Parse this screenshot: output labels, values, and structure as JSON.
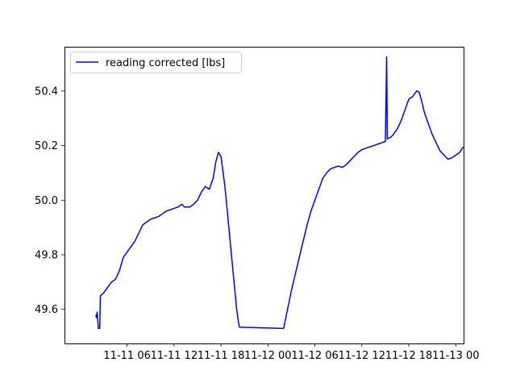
{
  "chart_data": {
    "type": "line",
    "title": "",
    "xlabel": "",
    "ylabel": "",
    "x_ticks": [
      "11-11 06",
      "11-11 12",
      "11-11 18",
      "11-12 00",
      "11-12 06",
      "11-12 12",
      "11-12 18",
      "11-13 00"
    ],
    "y_ticks": [
      "49.6",
      "49.8",
      "50.0",
      "50.2",
      "50.4"
    ],
    "x_range": [
      "2023-11-10 22:00",
      "2023-11-13 01:00"
    ],
    "ylim": [
      49.475,
      50.562
    ],
    "grid": false,
    "legend_position": "upper left",
    "series": [
      {
        "name": "reading corrected [lbs]",
        "color": "#0000ff",
        "points": [
          [
            "2023-11-11 02:00",
            49.58
          ],
          [
            "2023-11-11 02:05",
            49.57
          ],
          [
            "2023-11-11 02:10",
            49.59
          ],
          [
            "2023-11-11 02:15",
            49.56
          ],
          [
            "2023-11-11 02:20",
            49.53
          ],
          [
            "2023-11-11 02:30",
            49.53
          ],
          [
            "2023-11-11 02:35",
            49.65
          ],
          [
            "2023-11-11 03:00",
            49.66
          ],
          [
            "2023-11-11 03:30",
            49.68
          ],
          [
            "2023-11-11 04:00",
            49.7
          ],
          [
            "2023-11-11 04:30",
            49.71
          ],
          [
            "2023-11-11 05:00",
            49.74
          ],
          [
            "2023-11-11 05:30",
            49.79
          ],
          [
            "2023-11-11 06:00",
            49.81
          ],
          [
            "2023-11-11 06:30",
            49.83
          ],
          [
            "2023-11-11 07:00",
            49.85
          ],
          [
            "2023-11-11 07:30",
            49.88
          ],
          [
            "2023-11-11 08:00",
            49.91
          ],
          [
            "2023-11-11 08:30",
            49.92
          ],
          [
            "2023-11-11 09:00",
            49.93
          ],
          [
            "2023-11-11 09:30",
            49.935
          ],
          [
            "2023-11-11 10:00",
            49.94
          ],
          [
            "2023-11-11 10:30",
            49.95
          ],
          [
            "2023-11-11 11:00",
            49.96
          ],
          [
            "2023-11-11 11:30",
            49.965
          ],
          [
            "2023-11-11 12:00",
            49.97
          ],
          [
            "2023-11-11 12:30",
            49.975
          ],
          [
            "2023-11-11 13:00",
            49.985
          ],
          [
            "2023-11-11 13:20",
            49.975
          ],
          [
            "2023-11-11 14:00",
            49.975
          ],
          [
            "2023-11-11 14:30",
            49.985
          ],
          [
            "2023-11-11 15:00",
            50.0
          ],
          [
            "2023-11-11 15:30",
            50.03
          ],
          [
            "2023-11-11 16:00",
            50.05
          ],
          [
            "2023-11-11 16:30",
            50.04
          ],
          [
            "2023-11-11 17:00",
            50.08
          ],
          [
            "2023-11-11 17:20",
            50.14
          ],
          [
            "2023-11-11 17:40",
            50.175
          ],
          [
            "2023-11-11 18:00",
            50.16
          ],
          [
            "2023-11-11 18:30",
            50.05
          ],
          [
            "2023-11-11 19:00",
            49.9
          ],
          [
            "2023-11-11 19:30",
            49.75
          ],
          [
            "2023-11-11 20:00",
            49.6
          ],
          [
            "2023-11-11 20:20",
            49.535
          ],
          [
            "2023-11-12 02:00",
            49.53
          ],
          [
            "2023-11-12 02:30",
            49.6
          ],
          [
            "2023-11-12 03:00",
            49.67
          ],
          [
            "2023-11-12 03:30",
            49.73
          ],
          [
            "2023-11-12 04:00",
            49.79
          ],
          [
            "2023-11-12 04:30",
            49.85
          ],
          [
            "2023-11-12 05:00",
            49.91
          ],
          [
            "2023-11-12 05:30",
            49.96
          ],
          [
            "2023-11-12 06:00",
            50.0
          ],
          [
            "2023-11-12 06:30",
            50.04
          ],
          [
            "2023-11-12 07:00",
            50.08
          ],
          [
            "2023-11-12 07:30",
            50.1
          ],
          [
            "2023-11-12 08:00",
            50.115
          ],
          [
            "2023-11-12 08:30",
            50.12
          ],
          [
            "2023-11-12 09:00",
            50.125
          ],
          [
            "2023-11-12 09:30",
            50.12
          ],
          [
            "2023-11-12 10:00",
            50.13
          ],
          [
            "2023-11-12 10:30",
            50.145
          ],
          [
            "2023-11-12 11:00",
            50.16
          ],
          [
            "2023-11-12 11:30",
            50.175
          ],
          [
            "2023-11-12 12:00",
            50.185
          ],
          [
            "2023-11-12 12:30",
            50.19
          ],
          [
            "2023-11-12 13:00",
            50.195
          ],
          [
            "2023-11-12 13:30",
            50.2
          ],
          [
            "2023-11-12 14:00",
            50.205
          ],
          [
            "2023-11-12 14:30",
            50.21
          ],
          [
            "2023-11-12 15:00",
            50.215
          ],
          [
            "2023-11-12 15:10",
            50.525
          ],
          [
            "2023-11-12 15:15",
            50.225
          ],
          [
            "2023-11-12 15:40",
            50.23
          ],
          [
            "2023-11-12 16:00",
            50.24
          ],
          [
            "2023-11-12 16:30",
            50.26
          ],
          [
            "2023-11-12 17:00",
            50.29
          ],
          [
            "2023-11-12 17:30",
            50.33
          ],
          [
            "2023-11-12 18:00",
            50.37
          ],
          [
            "2023-11-12 18:30",
            50.38
          ],
          [
            "2023-11-12 19:00",
            50.4
          ],
          [
            "2023-11-12 19:20",
            50.395
          ],
          [
            "2023-11-12 19:40",
            50.36
          ],
          [
            "2023-11-12 20:00",
            50.32
          ],
          [
            "2023-11-12 20:30",
            50.28
          ],
          [
            "2023-11-12 21:00",
            50.24
          ],
          [
            "2023-11-12 21:30",
            50.21
          ],
          [
            "2023-11-12 22:00",
            50.18
          ],
          [
            "2023-11-12 22:30",
            50.165
          ],
          [
            "2023-11-12 23:00",
            50.15
          ],
          [
            "2023-11-12 23:30",
            50.155
          ],
          [
            "2023-11-13 00:00",
            50.165
          ],
          [
            "2023-11-13 00:30",
            50.175
          ],
          [
            "2023-11-13 00:50",
            50.19
          ],
          [
            "2023-11-13 01:00",
            50.195
          ]
        ]
      }
    ]
  }
}
